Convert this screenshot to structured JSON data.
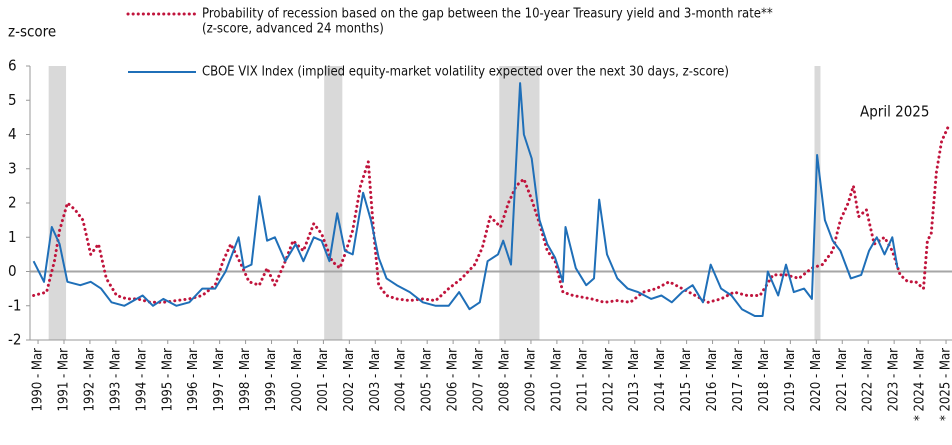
{
  "chart_data": {
    "type": "line",
    "ylabel": "z-score",
    "annotation": "April 2025",
    "xlim": [
      1989.86,
      2025.4
    ],
    "ylim": [
      -2,
      6
    ],
    "yticks": [
      -2,
      -1,
      0,
      1,
      2,
      3,
      4,
      5,
      6
    ],
    "xticks": [
      {
        "value": 1990.17,
        "label": "1990 - Mar"
      },
      {
        "value": 1991.17,
        "label": "1991 - Mar"
      },
      {
        "value": 1992.17,
        "label": "1992 - Mar"
      },
      {
        "value": 1993.17,
        "label": "1993 - Mar"
      },
      {
        "value": 1994.17,
        "label": "1994 - Mar"
      },
      {
        "value": 1995.17,
        "label": "1995 - Mar"
      },
      {
        "value": 1996.17,
        "label": "1996 - Mar"
      },
      {
        "value": 1997.17,
        "label": "1997 - Mar"
      },
      {
        "value": 1998.17,
        "label": "1998 - Mar"
      },
      {
        "value": 1999.17,
        "label": "1999 - Mar"
      },
      {
        "value": 2000.17,
        "label": "2000 - Mar"
      },
      {
        "value": 2001.17,
        "label": "2001 - Mar"
      },
      {
        "value": 2002.17,
        "label": "2002 - Mar"
      },
      {
        "value": 2003.17,
        "label": "2003 - Mar"
      },
      {
        "value": 2004.17,
        "label": "2004 - Mar"
      },
      {
        "value": 2005.17,
        "label": "2005 - Mar"
      },
      {
        "value": 2006.17,
        "label": "2006 - Mar"
      },
      {
        "value": 2007.17,
        "label": "2007 - Mar"
      },
      {
        "value": 2008.17,
        "label": "2008 - Mar"
      },
      {
        "value": 2009.17,
        "label": "2009 - Mar"
      },
      {
        "value": 2010.17,
        "label": "2010 - Mar"
      },
      {
        "value": 2011.17,
        "label": "2011 - Mar"
      },
      {
        "value": 2012.17,
        "label": "2012 - Mar"
      },
      {
        "value": 2013.17,
        "label": "2013 - Mar"
      },
      {
        "value": 2014.17,
        "label": "2014 - Mar"
      },
      {
        "value": 2015.17,
        "label": "2015 - Mar"
      },
      {
        "value": 2016.17,
        "label": "2016 - Mar"
      },
      {
        "value": 2017.17,
        "label": "2017 - Mar"
      },
      {
        "value": 2018.17,
        "label": "2018 - Mar"
      },
      {
        "value": 2019.17,
        "label": "2019 - Mar"
      },
      {
        "value": 2020.17,
        "label": "2020 - Mar"
      },
      {
        "value": 2021.17,
        "label": "2021 - Mar"
      },
      {
        "value": 2022.17,
        "label": "2022 - Mar"
      },
      {
        "value": 2023.17,
        "label": "2023 - Mar"
      },
      {
        "value": 2024.17,
        "label": "* 2024 - Mar"
      },
      {
        "value": 2025.17,
        "label": "* 2025 - Mar"
      }
    ],
    "recessions": [
      [
        1990.58,
        1991.25
      ],
      [
        2001.2,
        2001.9
      ],
      [
        2007.95,
        2009.5
      ],
      [
        2020.1,
        2020.33
      ]
    ],
    "recession_color": "#d9d9d9",
    "series": [
      {
        "name": "Probability of recession based on the gap between the 10-year Treasury yield and 3-month rate**",
        "name_detail": "(z-score, advanced 24 months)",
        "color": "#c0143c",
        "style": "dotted",
        "x": [
          1990.0,
          1990.5,
          1990.8,
          1991.0,
          1991.3,
          1991.6,
          1991.9,
          1992.2,
          1992.5,
          1992.8,
          1993.2,
          1993.6,
          1994.0,
          1994.5,
          1995.0,
          1995.5,
          1996.0,
          1996.5,
          1997.0,
          1997.3,
          1997.6,
          1998.0,
          1998.3,
          1998.7,
          1999.0,
          1999.3,
          1999.7,
          2000.0,
          2000.4,
          2000.8,
          2001.1,
          2001.5,
          2001.8,
          2002.0,
          2002.3,
          2002.6,
          2002.9,
          2003.1,
          2003.3,
          2003.6,
          2004.0,
          2004.5,
          2005.0,
          2005.5,
          2006.0,
          2006.5,
          2007.0,
          2007.3,
          2007.6,
          2008.0,
          2008.3,
          2008.6,
          2008.9,
          2009.2,
          2009.5,
          2009.8,
          2010.1,
          2010.4,
          2010.8,
          2011.5,
          2012.0,
          2012.5,
          2013.0,
          2013.5,
          2014.0,
          2014.5,
          2015.0,
          2015.5,
          2016.0,
          2016.5,
          2017.0,
          2017.5,
          2018.0,
          2018.5,
          2019.0,
          2019.5,
          2020.0,
          2020.4,
          2020.8,
          2021.1,
          2021.4,
          2021.6,
          2021.8,
          2022.1,
          2022.4,
          2022.8,
          2023.1,
          2023.4,
          2023.7,
          2024.0,
          2024.3,
          2024.45,
          2024.6,
          2024.8,
          2025.0,
          2025.3
        ],
        "values": [
          -0.7,
          -0.6,
          0.3,
          1.2,
          2.0,
          1.8,
          1.5,
          0.5,
          0.8,
          -0.2,
          -0.7,
          -0.8,
          -0.8,
          -0.9,
          -0.9,
          -0.85,
          -0.8,
          -0.7,
          -0.4,
          0.3,
          0.8,
          0.2,
          -0.3,
          -0.4,
          0.1,
          -0.4,
          0.3,
          0.9,
          0.6,
          1.4,
          1.1,
          0.3,
          0.1,
          0.5,
          1.2,
          2.5,
          3.2,
          1.2,
          -0.4,
          -0.7,
          -0.8,
          -0.85,
          -0.8,
          -0.85,
          -0.5,
          -0.2,
          0.2,
          0.7,
          1.6,
          1.3,
          2.0,
          2.5,
          2.7,
          2.1,
          1.4,
          0.6,
          0.3,
          -0.6,
          -0.7,
          -0.8,
          -0.9,
          -0.85,
          -0.9,
          -0.6,
          -0.5,
          -0.3,
          -0.5,
          -0.7,
          -0.9,
          -0.8,
          -0.6,
          -0.7,
          -0.7,
          -0.1,
          -0.1,
          -0.2,
          0.1,
          0.2,
          0.6,
          1.5,
          2.0,
          2.5,
          1.6,
          1.8,
          0.8,
          1.0,
          0.6,
          -0.1,
          -0.3,
          -0.3,
          -0.5,
          0.9,
          1.1,
          2.9,
          3.8,
          4.3
        ]
      },
      {
        "name": "CBOE VIX Index (implied equity-market volatility expected over the next 30 days, z-score)",
        "color": "#1f6fb8",
        "style": "solid",
        "x": [
          1990.0,
          1990.4,
          1990.7,
          1991.0,
          1991.3,
          1991.8,
          1992.2,
          1992.6,
          1993.0,
          1993.5,
          1994.2,
          1994.6,
          1995.0,
          1995.5,
          1996.0,
          1996.5,
          1997.0,
          1997.4,
          1997.9,
          1998.1,
          1998.4,
          1998.7,
          1999.0,
          1999.3,
          1999.7,
          2000.1,
          2000.4,
          2000.8,
          2001.1,
          2001.4,
          2001.7,
          2002.0,
          2002.3,
          2002.7,
          2003.0,
          2003.3,
          2003.6,
          2004.0,
          2004.5,
          2005.0,
          2005.5,
          2006.0,
          2006.4,
          2006.8,
          2007.2,
          2007.5,
          2007.9,
          2008.1,
          2008.4,
          2008.75,
          2008.9,
          2009.2,
          2009.5,
          2009.8,
          2010.1,
          2010.4,
          2010.5,
          2010.9,
          2011.3,
          2011.6,
          2011.8,
          2012.1,
          2012.5,
          2012.9,
          2013.3,
          2013.8,
          2014.2,
          2014.6,
          2015.0,
          2015.4,
          2015.8,
          2016.1,
          2016.5,
          2016.9,
          2017.3,
          2017.8,
          2018.1,
          2018.3,
          2018.7,
          2019.0,
          2019.3,
          2019.7,
          2020.0,
          2020.2,
          2020.5,
          2020.8,
          2021.1,
          2021.5,
          2021.9,
          2022.2,
          2022.5,
          2022.8,
          2023.1,
          2023.3
        ],
        "values": [
          0.3,
          -0.3,
          1.3,
          0.8,
          -0.3,
          -0.4,
          -0.3,
          -0.5,
          -0.9,
          -1.0,
          -0.7,
          -1.0,
          -0.8,
          -1.0,
          -0.9,
          -0.5,
          -0.5,
          0.0,
          1.0,
          0.1,
          0.2,
          2.2,
          0.9,
          1.0,
          0.3,
          0.8,
          0.3,
          1.0,
          0.9,
          0.3,
          1.7,
          0.6,
          0.5,
          2.3,
          1.5,
          0.4,
          -0.2,
          -0.4,
          -0.6,
          -0.9,
          -1.0,
          -1.0,
          -0.6,
          -1.1,
          -0.9,
          0.3,
          0.5,
          0.9,
          0.2,
          5.5,
          4.0,
          3.3,
          1.5,
          0.8,
          0.4,
          -0.3,
          1.3,
          0.1,
          -0.4,
          -0.2,
          2.1,
          0.5,
          -0.2,
          -0.5,
          -0.6,
          -0.8,
          -0.7,
          -0.9,
          -0.6,
          -0.4,
          -0.9,
          0.2,
          -0.5,
          -0.7,
          -1.1,
          -1.3,
          -1.3,
          0.0,
          -0.7,
          0.2,
          -0.6,
          -0.5,
          -0.8,
          3.4,
          1.5,
          0.9,
          0.6,
          -0.2,
          -0.1,
          0.6,
          1.0,
          0.5,
          1.0,
          0.1
        ]
      }
    ]
  }
}
